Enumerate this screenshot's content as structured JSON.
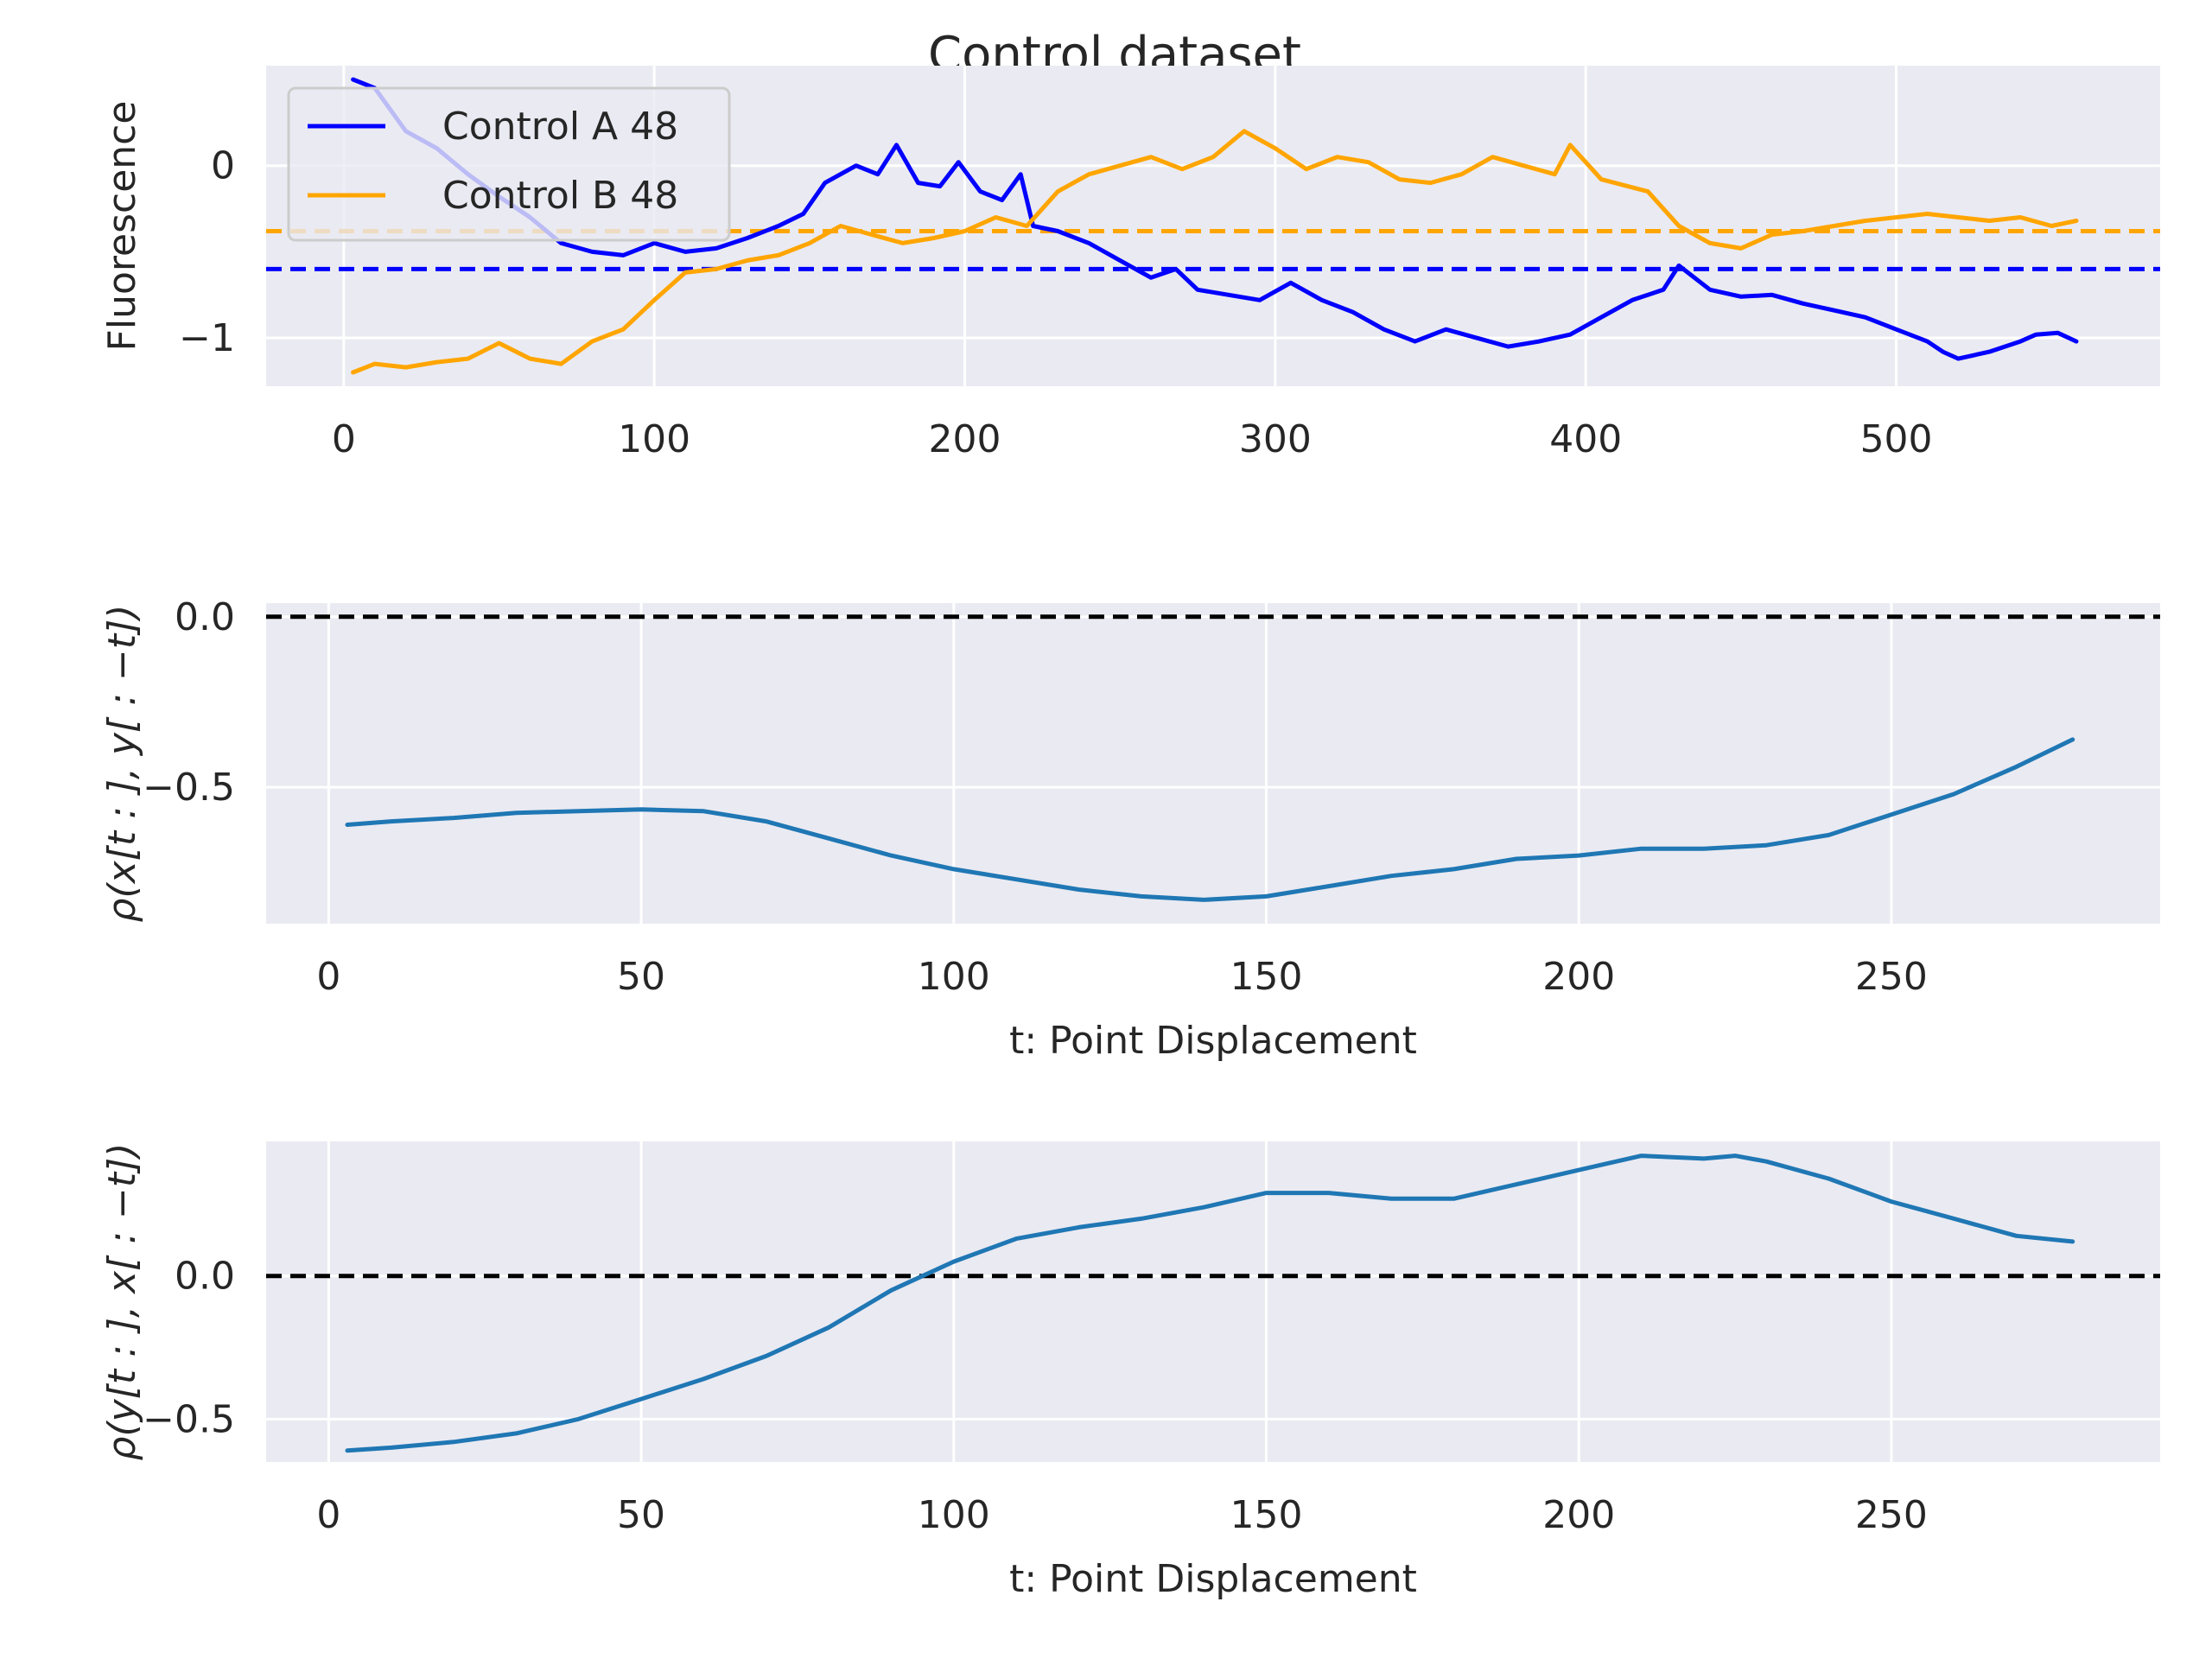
{
  "figure": {
    "suptitle": "Control dataset"
  },
  "colors": {
    "background": "#eaeaf2",
    "grid": "#ffffff",
    "series_a": "#0000ff",
    "series_b": "#ffa500",
    "correlation": "#1f77b4",
    "zero_line": "#000000"
  },
  "chart_data": [
    {
      "type": "line",
      "title": "",
      "xlabel": "",
      "ylabel": "Fluorescence",
      "xlim": [
        -25,
        585
      ],
      "ylim": [
        -1.28,
        0.58
      ],
      "xticks": [
        0,
        100,
        200,
        300,
        400,
        500
      ],
      "yticks": [
        0,
        -1
      ],
      "ytick_labels": [
        "0",
        "−1"
      ],
      "grid": true,
      "legend": "upper-left",
      "series": [
        {
          "name": "Control A 48",
          "color": "#0000ff",
          "points": [
            [
              3,
              0.5
            ],
            [
              10,
              0.45
            ],
            [
              20,
              0.2
            ],
            [
              30,
              0.1
            ],
            [
              40,
              -0.05
            ],
            [
              50,
              -0.18
            ],
            [
              60,
              -0.3
            ],
            [
              70,
              -0.45
            ],
            [
              80,
              -0.5
            ],
            [
              90,
              -0.52
            ],
            [
              100,
              -0.45
            ],
            [
              110,
              -0.5
            ],
            [
              120,
              -0.48
            ],
            [
              130,
              -0.42
            ],
            [
              140,
              -0.35
            ],
            [
              148,
              -0.28
            ],
            [
              155,
              -0.1
            ],
            [
              165,
              0.0
            ],
            [
              172,
              -0.05
            ],
            [
              178,
              0.12
            ],
            [
              185,
              -0.1
            ],
            [
              192,
              -0.12
            ],
            [
              198,
              0.02
            ],
            [
              205,
              -0.15
            ],
            [
              212,
              -0.2
            ],
            [
              218,
              -0.05
            ],
            [
              222,
              -0.35
            ],
            [
              230,
              -0.38
            ],
            [
              240,
              -0.45
            ],
            [
              250,
              -0.55
            ],
            [
              260,
              -0.65
            ],
            [
              268,
              -0.6
            ],
            [
              275,
              -0.72
            ],
            [
              285,
              -0.75
            ],
            [
              295,
              -0.78
            ],
            [
              305,
              -0.68
            ],
            [
              315,
              -0.78
            ],
            [
              325,
              -0.85
            ],
            [
              335,
              -0.95
            ],
            [
              345,
              -1.02
            ],
            [
              355,
              -0.95
            ],
            [
              365,
              -1.0
            ],
            [
              375,
              -1.05
            ],
            [
              385,
              -1.02
            ],
            [
              395,
              -0.98
            ],
            [
              405,
              -0.88
            ],
            [
              415,
              -0.78
            ],
            [
              425,
              -0.72
            ],
            [
              430,
              -0.58
            ],
            [
              440,
              -0.72
            ],
            [
              450,
              -0.76
            ],
            [
              460,
              -0.75
            ],
            [
              470,
              -0.8
            ],
            [
              480,
              -0.84
            ],
            [
              490,
              -0.88
            ],
            [
              500,
              -0.95
            ],
            [
              510,
              -1.02
            ],
            [
              515,
              -1.08
            ],
            [
              520,
              -1.12
            ],
            [
              530,
              -1.08
            ],
            [
              540,
              -1.02
            ],
            [
              545,
              -0.98
            ],
            [
              552,
              -0.97
            ],
            [
              558,
              -1.02
            ]
          ]
        },
        {
          "name": "Control B 48",
          "color": "#ffa500",
          "points": [
            [
              3,
              -1.2
            ],
            [
              10,
              -1.15
            ],
            [
              20,
              -1.17
            ],
            [
              30,
              -1.14
            ],
            [
              40,
              -1.12
            ],
            [
              50,
              -1.03
            ],
            [
              60,
              -1.12
            ],
            [
              70,
              -1.15
            ],
            [
              80,
              -1.02
            ],
            [
              90,
              -0.95
            ],
            [
              100,
              -0.78
            ],
            [
              110,
              -0.62
            ],
            [
              120,
              -0.6
            ],
            [
              130,
              -0.55
            ],
            [
              140,
              -0.52
            ],
            [
              150,
              -0.45
            ],
            [
              160,
              -0.35
            ],
            [
              170,
              -0.4
            ],
            [
              180,
              -0.45
            ],
            [
              190,
              -0.42
            ],
            [
              200,
              -0.38
            ],
            [
              210,
              -0.3
            ],
            [
              220,
              -0.35
            ],
            [
              230,
              -0.15
            ],
            [
              240,
              -0.05
            ],
            [
              250,
              0.0
            ],
            [
              260,
              0.05
            ],
            [
              270,
              -0.02
            ],
            [
              280,
              0.05
            ],
            [
              290,
              0.2
            ],
            [
              300,
              0.1
            ],
            [
              310,
              -0.02
            ],
            [
              320,
              0.05
            ],
            [
              330,
              0.02
            ],
            [
              340,
              -0.08
            ],
            [
              350,
              -0.1
            ],
            [
              360,
              -0.05
            ],
            [
              370,
              0.05
            ],
            [
              380,
              0.0
            ],
            [
              390,
              -0.05
            ],
            [
              395,
              0.12
            ],
            [
              405,
              -0.08
            ],
            [
              420,
              -0.15
            ],
            [
              430,
              -0.35
            ],
            [
              440,
              -0.45
            ],
            [
              450,
              -0.48
            ],
            [
              460,
              -0.4
            ],
            [
              470,
              -0.38
            ],
            [
              480,
              -0.35
            ],
            [
              490,
              -0.32
            ],
            [
              500,
              -0.3
            ],
            [
              510,
              -0.28
            ],
            [
              520,
              -0.3
            ],
            [
              530,
              -0.32
            ],
            [
              540,
              -0.3
            ],
            [
              550,
              -0.35
            ],
            [
              558,
              -0.32
            ]
          ]
        }
      ],
      "reference_lines": [
        {
          "y": -0.6,
          "color": "#0000ff",
          "style": "dashed"
        },
        {
          "y": -0.38,
          "color": "#ffa500",
          "style": "dashed"
        }
      ]
    },
    {
      "type": "line",
      "title": "",
      "xlabel": "t: Point Displacement",
      "ylabel": "ρ(x[t : ], y[ : −t])",
      "xlim": [
        -10,
        293
      ],
      "ylim": [
        -0.9,
        0.04
      ],
      "xticks": [
        0,
        50,
        100,
        150,
        200,
        250
      ],
      "yticks": [
        0.0,
        -0.5
      ],
      "ytick_labels": [
        "0.0",
        "−0.5"
      ],
      "grid": true,
      "series": [
        {
          "color": "#1f77b4",
          "points": [
            [
              3,
              -0.61
            ],
            [
              10,
              -0.6
            ],
            [
              20,
              -0.59
            ],
            [
              30,
              -0.575
            ],
            [
              40,
              -0.57
            ],
            [
              50,
              -0.565
            ],
            [
              60,
              -0.57
            ],
            [
              70,
              -0.6
            ],
            [
              80,
              -0.65
            ],
            [
              90,
              -0.7
            ],
            [
              100,
              -0.74
            ],
            [
              110,
              -0.77
            ],
            [
              120,
              -0.8
            ],
            [
              130,
              -0.82
            ],
            [
              140,
              -0.83
            ],
            [
              150,
              -0.82
            ],
            [
              160,
              -0.79
            ],
            [
              170,
              -0.76
            ],
            [
              180,
              -0.74
            ],
            [
              190,
              -0.71
            ],
            [
              200,
              -0.7
            ],
            [
              210,
              -0.68
            ],
            [
              220,
              -0.68
            ],
            [
              230,
              -0.67
            ],
            [
              240,
              -0.64
            ],
            [
              250,
              -0.58
            ],
            [
              260,
              -0.52
            ],
            [
              270,
              -0.44
            ],
            [
              279,
              -0.36
            ]
          ]
        }
      ],
      "reference_lines": [
        {
          "y": 0.0,
          "color": "#000000",
          "style": "dashed"
        }
      ]
    },
    {
      "type": "line",
      "title": "",
      "xlabel": "t: Point Displacement",
      "ylabel": "ρ(y[t : ], x[ : −t])",
      "xlim": [
        -10,
        293
      ],
      "ylim": [
        -0.65,
        0.47
      ],
      "xticks": [
        0,
        50,
        100,
        150,
        200,
        250
      ],
      "yticks": [
        0.0,
        -0.5
      ],
      "ytick_labels": [
        "0.0",
        "−0.5"
      ],
      "grid": true,
      "series": [
        {
          "color": "#1f77b4",
          "points": [
            [
              3,
              -0.61
            ],
            [
              10,
              -0.6
            ],
            [
              20,
              -0.58
            ],
            [
              30,
              -0.55
            ],
            [
              40,
              -0.5
            ],
            [
              50,
              -0.43
            ],
            [
              60,
              -0.36
            ],
            [
              70,
              -0.28
            ],
            [
              80,
              -0.18
            ],
            [
              90,
              -0.05
            ],
            [
              100,
              0.05
            ],
            [
              110,
              0.13
            ],
            [
              120,
              0.17
            ],
            [
              130,
              0.2
            ],
            [
              140,
              0.24
            ],
            [
              150,
              0.29
            ],
            [
              160,
              0.29
            ],
            [
              170,
              0.27
            ],
            [
              180,
              0.27
            ],
            [
              190,
              0.32
            ],
            [
              200,
              0.37
            ],
            [
              210,
              0.42
            ],
            [
              220,
              0.41
            ],
            [
              225,
              0.42
            ],
            [
              230,
              0.4
            ],
            [
              240,
              0.34
            ],
            [
              250,
              0.26
            ],
            [
              260,
              0.2
            ],
            [
              270,
              0.14
            ],
            [
              279,
              0.12
            ]
          ]
        }
      ],
      "reference_lines": [
        {
          "y": 0.0,
          "color": "#000000",
          "style": "dashed"
        }
      ]
    }
  ]
}
